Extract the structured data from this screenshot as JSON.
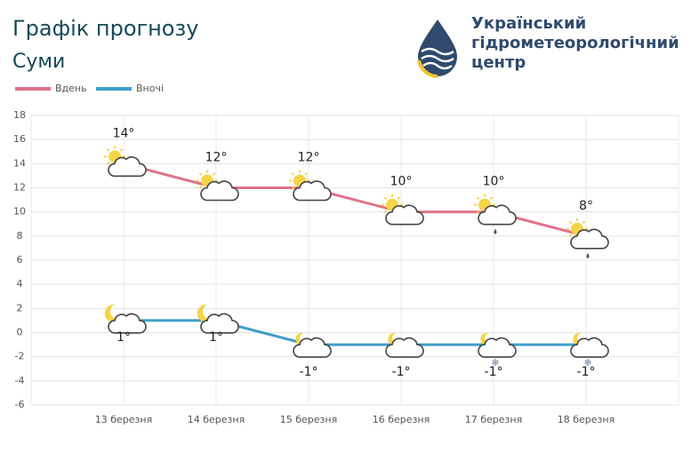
{
  "chart_data": {
    "type": "line",
    "title": "Графік прогнозу",
    "subtitle": "Суми",
    "organization": [
      "Український",
      "гідрометеорологічний",
      "центр"
    ],
    "categories": [
      "13 березня",
      "14 березня",
      "15 березня",
      "16 березня",
      "17 березня",
      "18 березня"
    ],
    "series": [
      {
        "name": "Вдень",
        "color": "#e0728a",
        "values": [
          14,
          12,
          12,
          10,
          10,
          8
        ],
        "value_labels": [
          "14°",
          "12°",
          "12°",
          "10°",
          "10°",
          "8°"
        ]
      },
      {
        "name": "Вночі",
        "color": "#3e9fcb",
        "values": [
          1,
          1,
          -1,
          -1,
          -1,
          -1
        ],
        "value_labels": [
          "1°",
          "1°",
          "-1°",
          "-1°",
          "-1°",
          "-1°"
        ]
      }
    ],
    "ylim": [
      -6,
      18
    ],
    "yticks": [
      -6,
      -4,
      -2,
      0,
      2,
      4,
      6,
      8,
      10,
      12,
      14,
      16,
      18
    ],
    "grid": true
  }
}
